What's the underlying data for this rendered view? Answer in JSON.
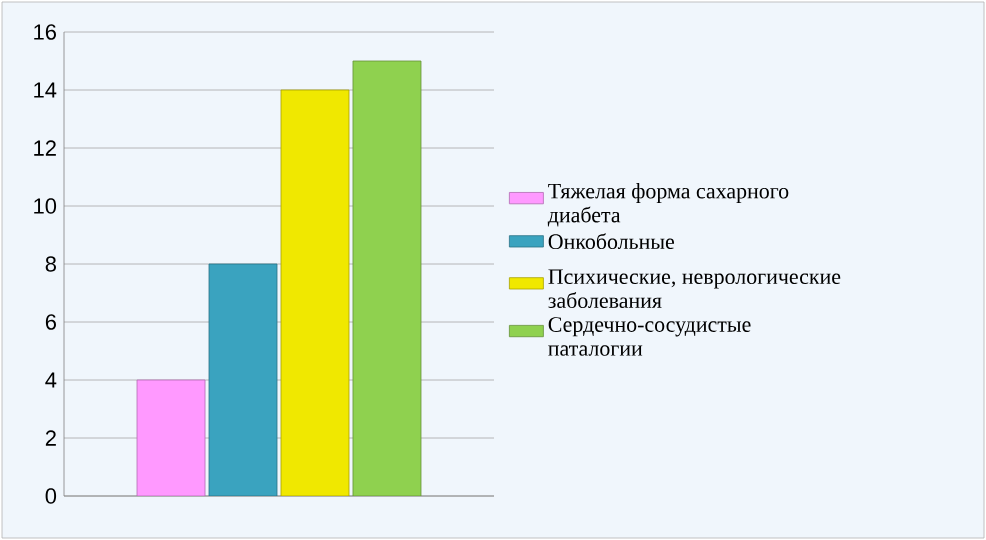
{
  "chart_data": {
    "type": "bar",
    "categories": [
      null
    ],
    "series": [
      {
        "name": "Тяжелая форма сахарного диабета",
        "color": "#ff99ff",
        "values": [
          4
        ]
      },
      {
        "name": "Онкобольные",
        "color": "#3aa3bf",
        "values": [
          8
        ]
      },
      {
        "name": "Психические, неврологические заболевания",
        "color": "#f0e800",
        "values": [
          14
        ]
      },
      {
        "name": "Сердечно-сосудистые паталогии",
        "color": "#8fd14f",
        "values": [
          15
        ]
      }
    ],
    "ylim": [
      0,
      16
    ],
    "yticks": [
      0,
      2,
      4,
      6,
      8,
      10,
      12,
      14,
      16
    ],
    "grid": "y",
    "legend": "right",
    "tick_labels": "y"
  }
}
